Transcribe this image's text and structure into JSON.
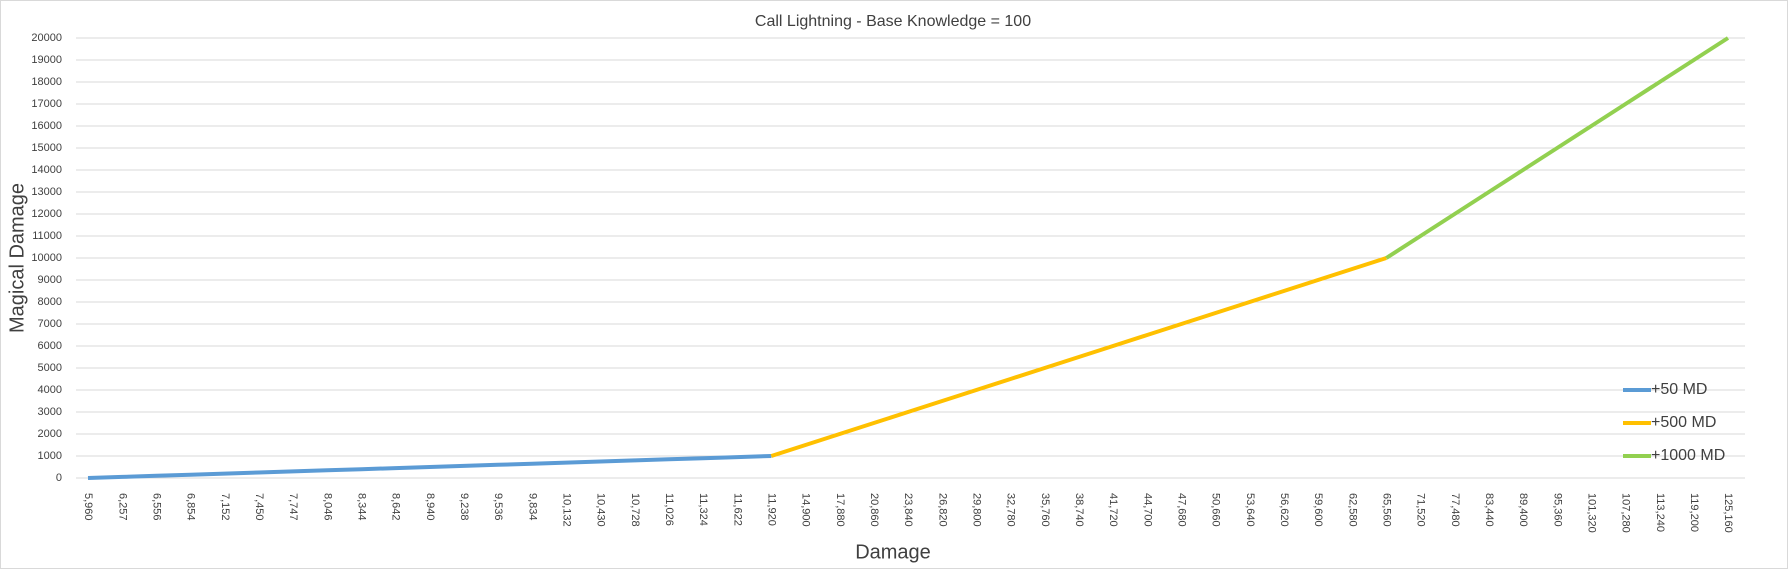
{
  "chart_data": {
    "type": "line",
    "title": "Call Lightning  - Base Knowledge = 100",
    "x_label": "Damage",
    "y_label": "Magical Damage",
    "categories": [
      "5,960",
      "6,257",
      "6,556",
      "6,854",
      "7,152",
      "7,450",
      "7,747",
      "8,046",
      "8,344",
      "8,642",
      "8,940",
      "9,238",
      "9,536",
      "9,834",
      "10,132",
      "10,430",
      "10,728",
      "11,026",
      "11,324",
      "11,622",
      "11,920",
      "14,900",
      "17,880",
      "20,860",
      "23,840",
      "26,820",
      "29,800",
      "32,780",
      "35,760",
      "38,740",
      "41,720",
      "44,700",
      "47,680",
      "50,660",
      "53,640",
      "56,620",
      "59,600",
      "62,580",
      "65,560",
      "71,520",
      "77,480",
      "83,440",
      "89,400",
      "95,360",
      "101,320",
      "107,280",
      "113,240",
      "119,200",
      "125,160"
    ],
    "series": [
      {
        "name": "+50 MD",
        "color": "#5b9bd5",
        "values": [
          0,
          50,
          100,
          150,
          200,
          250,
          300,
          350,
          400,
          450,
          500,
          550,
          600,
          650,
          700,
          750,
          800,
          850,
          900,
          950,
          1000,
          null,
          null,
          null,
          null,
          null,
          null,
          null,
          null,
          null,
          null,
          null,
          null,
          null,
          null,
          null,
          null,
          null,
          null,
          null,
          null,
          null,
          null,
          null,
          null,
          null,
          null,
          null,
          null
        ]
      },
      {
        "name": "+500 MD",
        "color": "#ffc000",
        "values": [
          null,
          null,
          null,
          null,
          null,
          null,
          null,
          null,
          null,
          null,
          null,
          null,
          null,
          null,
          null,
          null,
          null,
          null,
          null,
          null,
          1000,
          1500,
          2000,
          2500,
          3000,
          3500,
          4000,
          4500,
          5000,
          5500,
          6000,
          6500,
          7000,
          7500,
          8000,
          8500,
          9000,
          9500,
          10000,
          null,
          null,
          null,
          null,
          null,
          null,
          null,
          null,
          null,
          null
        ]
      },
      {
        "name": "+1000 MD",
        "color": "#92d050",
        "values": [
          null,
          null,
          null,
          null,
          null,
          null,
          null,
          null,
          null,
          null,
          null,
          null,
          null,
          null,
          null,
          null,
          null,
          null,
          null,
          null,
          null,
          null,
          null,
          null,
          null,
          null,
          null,
          null,
          null,
          null,
          null,
          null,
          null,
          null,
          null,
          null,
          null,
          null,
          10000,
          11000,
          12000,
          13000,
          14000,
          15000,
          16000,
          17000,
          18000,
          19000,
          20000
        ]
      }
    ],
    "ylim": [
      0,
      20000
    ],
    "yticks": [
      0,
      1000,
      2000,
      3000,
      4000,
      5000,
      6000,
      7000,
      8000,
      9000,
      10000,
      11000,
      12000,
      13000,
      14000,
      15000,
      16000,
      17000,
      18000,
      19000,
      20000
    ],
    "grid": true,
    "legend": "lower right"
  }
}
